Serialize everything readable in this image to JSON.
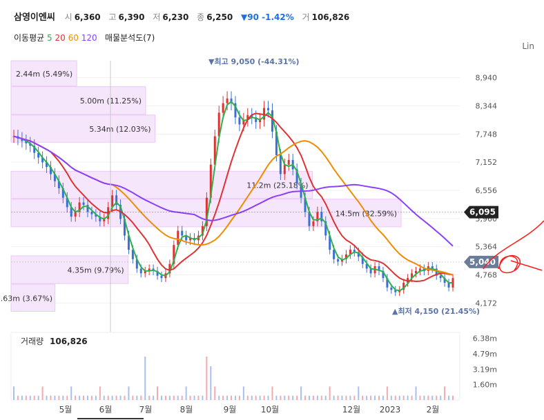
{
  "header": {
    "name": "삼영이엔씨",
    "open_label": "시",
    "open": "6,360",
    "high_label": "고",
    "high": "6,390",
    "low_label": "저",
    "low": "6,230",
    "close_label": "종",
    "close": "6,250",
    "change": "▼90 -1.42%",
    "volume_label": "거",
    "volume": "106,826",
    "ma_label": "이동평균",
    "ma5": "5",
    "ma20": "20",
    "ma60": "60",
    "ma120": "120",
    "vp_label": "매물분석도(7)",
    "scale_label": "Lin"
  },
  "chart_data": {
    "type": "candlestick",
    "price_axis": {
      "min": 3900,
      "max": 9300,
      "ticks": [
        "8,940",
        "8,344",
        "7,748",
        "7,152",
        "6,556",
        "5,960",
        "5,364",
        "4,768",
        "4,172"
      ]
    },
    "x_ticks": [
      "5월",
      "6월",
      "7월",
      "8월",
      "9월",
      "10월",
      "12월",
      "2023",
      "2월"
    ],
    "price_tags": [
      {
        "label": "6,095",
        "value": 6095,
        "color": "#222222"
      },
      {
        "label": "5,040",
        "value": 5040,
        "color": "#6b7c99"
      }
    ],
    "annotations": {
      "high": "▼최고 9,050 (-44.31%)",
      "high_value": 9050,
      "low": "▲최저 4,150 (21.45%)",
      "low_value": 4150
    },
    "volume_profile": [
      {
        "from": 8750,
        "to": 9300,
        "label": "2.44m (5.49%)",
        "share": 5.49
      },
      {
        "from": 8150,
        "to": 8750,
        "label": "5.00m (11.25%)",
        "share": 11.25
      },
      {
        "from": 7560,
        "to": 8150,
        "label": "5.34m (12.03%)",
        "share": 12.03
      },
      {
        "from": 6960,
        "to": 7560,
        "label": "",
        "share": 0
      },
      {
        "from": 6370,
        "to": 6960,
        "label": "11.2m (25.18%)",
        "share": 25.18
      },
      {
        "from": 5770,
        "to": 6370,
        "label": "14.5m (32.59%)",
        "share": 32.59
      },
      {
        "from": 5170,
        "to": 5770,
        "label": "",
        "share": 0
      },
      {
        "from": 4570,
        "to": 5170,
        "label": "4.35m (9.79%)",
        "share": 9.79
      },
      {
        "from": 3980,
        "to": 4570,
        "label": "1.63m (3.67%)",
        "share": 3.67
      }
    ],
    "volume_panel": {
      "label": "거래량",
      "value": "106,826",
      "ticks": [
        "6.38m",
        "4.79m",
        "3.19m",
        "1.60m"
      ],
      "max": 7000000
    },
    "close_series": [
      7700,
      7650,
      7600,
      7550,
      7500,
      7350,
      7250,
      7150,
      7050,
      6900,
      6750,
      6600,
      6400,
      6200,
      6000,
      6100,
      6300,
      6250,
      6100,
      6050,
      6000,
      5900,
      5950,
      6200,
      6450,
      6250,
      5950,
      5600,
      5300,
      5100,
      4900,
      4800,
      4850,
      4900,
      4850,
      4750,
      4700,
      4800,
      5000,
      5400,
      5700,
      5600,
      5500,
      5550,
      5500,
      5600,
      5800,
      6400,
      7100,
      7700,
      8200,
      8400,
      8500,
      8400,
      8100,
      7950,
      8050,
      8150,
      8100,
      8000,
      8050,
      8300,
      8250,
      7800,
      7300,
      6900,
      7100,
      7200,
      7000,
      6700,
      6400,
      6100,
      5800,
      5900,
      6100,
      5900,
      5600,
      5300,
      5100,
      5050,
      5100,
      5200,
      5300,
      5250,
      5150,
      5000,
      4900,
      4800,
      4950,
      4850,
      4700,
      4500,
      4450,
      4400,
      4450,
      4600,
      4700,
      4800,
      4850,
      4900,
      4850,
      4950,
      4900,
      4750,
      4700,
      4600,
      4500,
      4700
    ],
    "moving_averages": [
      {
        "name": "5",
        "color": "#2bb24c"
      },
      {
        "name": "20",
        "color": "#e03131"
      },
      {
        "name": "60",
        "color": "#f08c00"
      },
      {
        "name": "120",
        "color": "#8a3ffc"
      }
    ]
  }
}
